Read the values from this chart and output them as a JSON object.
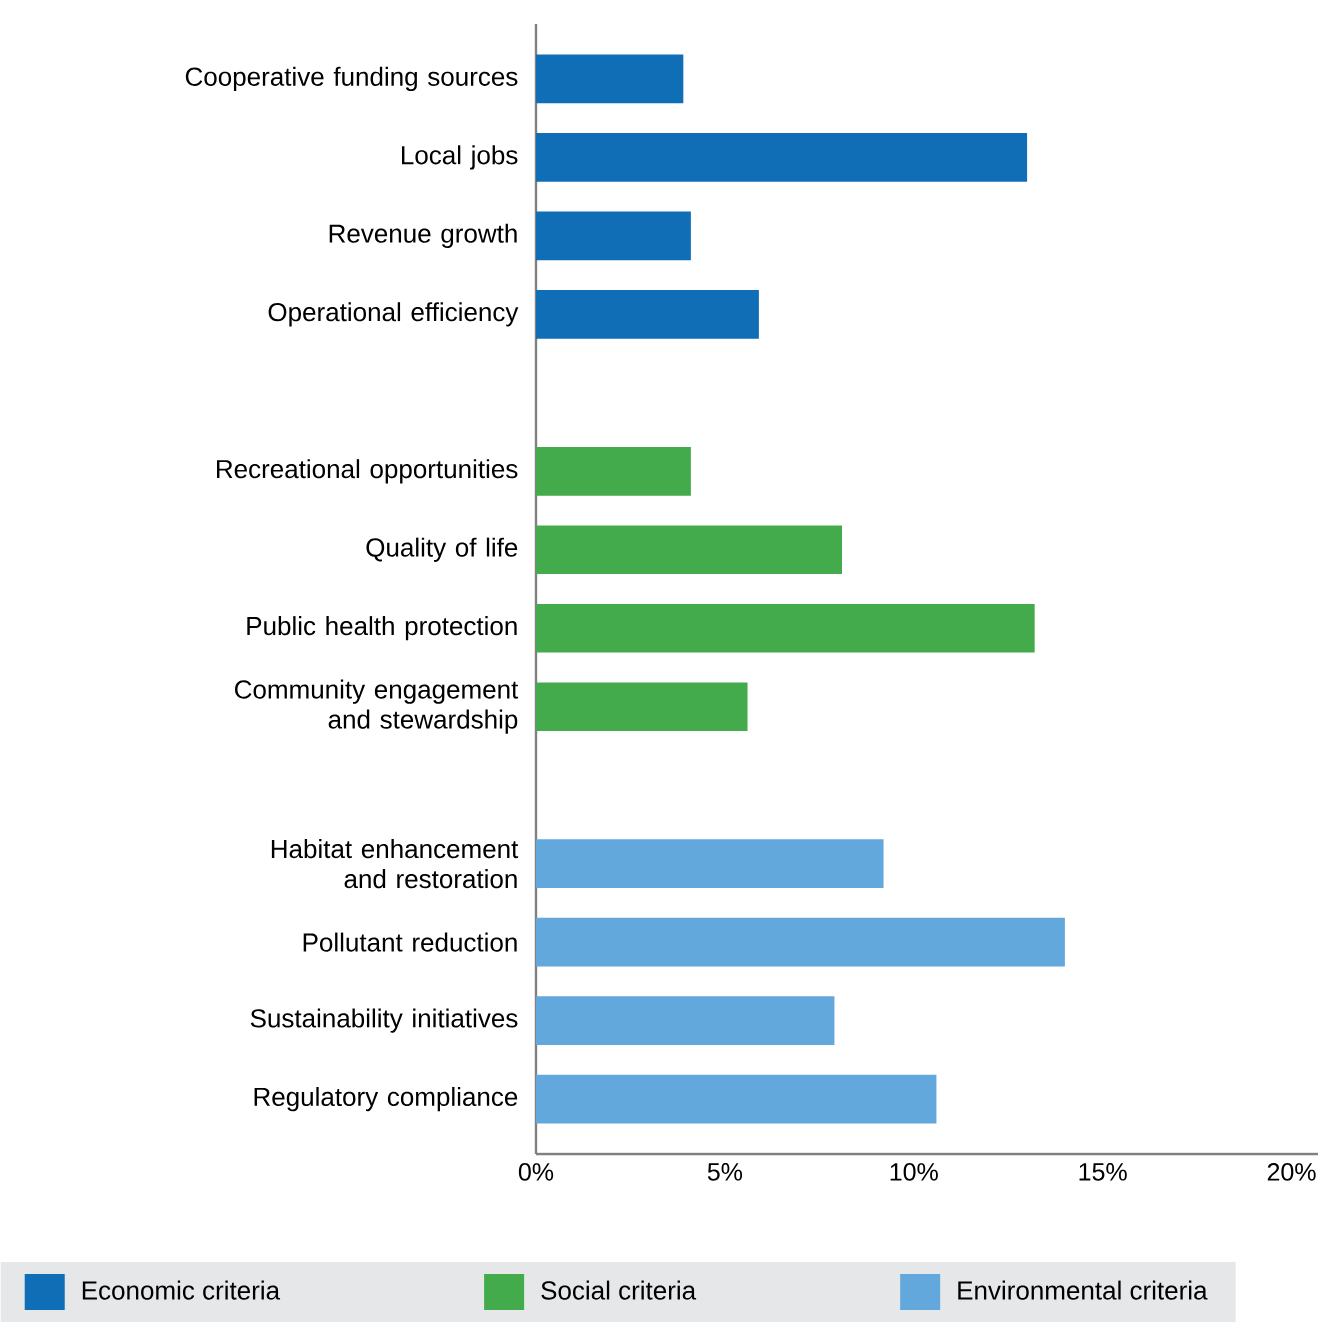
{
  "chart_data": {
    "type": "bar",
    "orientation": "horizontal",
    "categories": [
      "Cooperative funding sources",
      "Local jobs",
      "Revenue growth",
      "Operational efficiency",
      null,
      "Recreational opportunities",
      "Quality of life",
      "Public health protection",
      "Community engagement and stewardship",
      null,
      "Habitat enhancement and restoration",
      "Pollutant reduction",
      "Sustainability initiatives",
      "Regulatory compliance"
    ],
    "series": [
      {
        "name": "Economic criteria",
        "color": "#0f6eb6",
        "values": [
          3.9,
          13.0,
          4.1,
          5.9,
          null,
          null,
          null,
          null,
          null,
          null,
          null,
          null,
          null,
          null
        ]
      },
      {
        "name": "Social criteria",
        "color": "#43ab4b",
        "values": [
          null,
          null,
          null,
          null,
          null,
          4.1,
          8.1,
          13.2,
          5.6,
          null,
          null,
          null,
          null,
          null
        ]
      },
      {
        "name": "Environmental criteria",
        "color": "#62a8dc",
        "values": [
          null,
          null,
          null,
          null,
          null,
          null,
          null,
          null,
          null,
          null,
          9.2,
          14.0,
          7.9,
          10.6
        ]
      }
    ],
    "xlim": [
      0,
      20.7
    ],
    "xticks": [
      {
        "value": 0,
        "label": "0%"
      },
      {
        "value": 5,
        "label": "5%"
      },
      {
        "value": 10,
        "label": "10%"
      },
      {
        "value": 15,
        "label": "15%"
      },
      {
        "value": 20,
        "label": "20%"
      }
    ],
    "legend": "bottom"
  }
}
